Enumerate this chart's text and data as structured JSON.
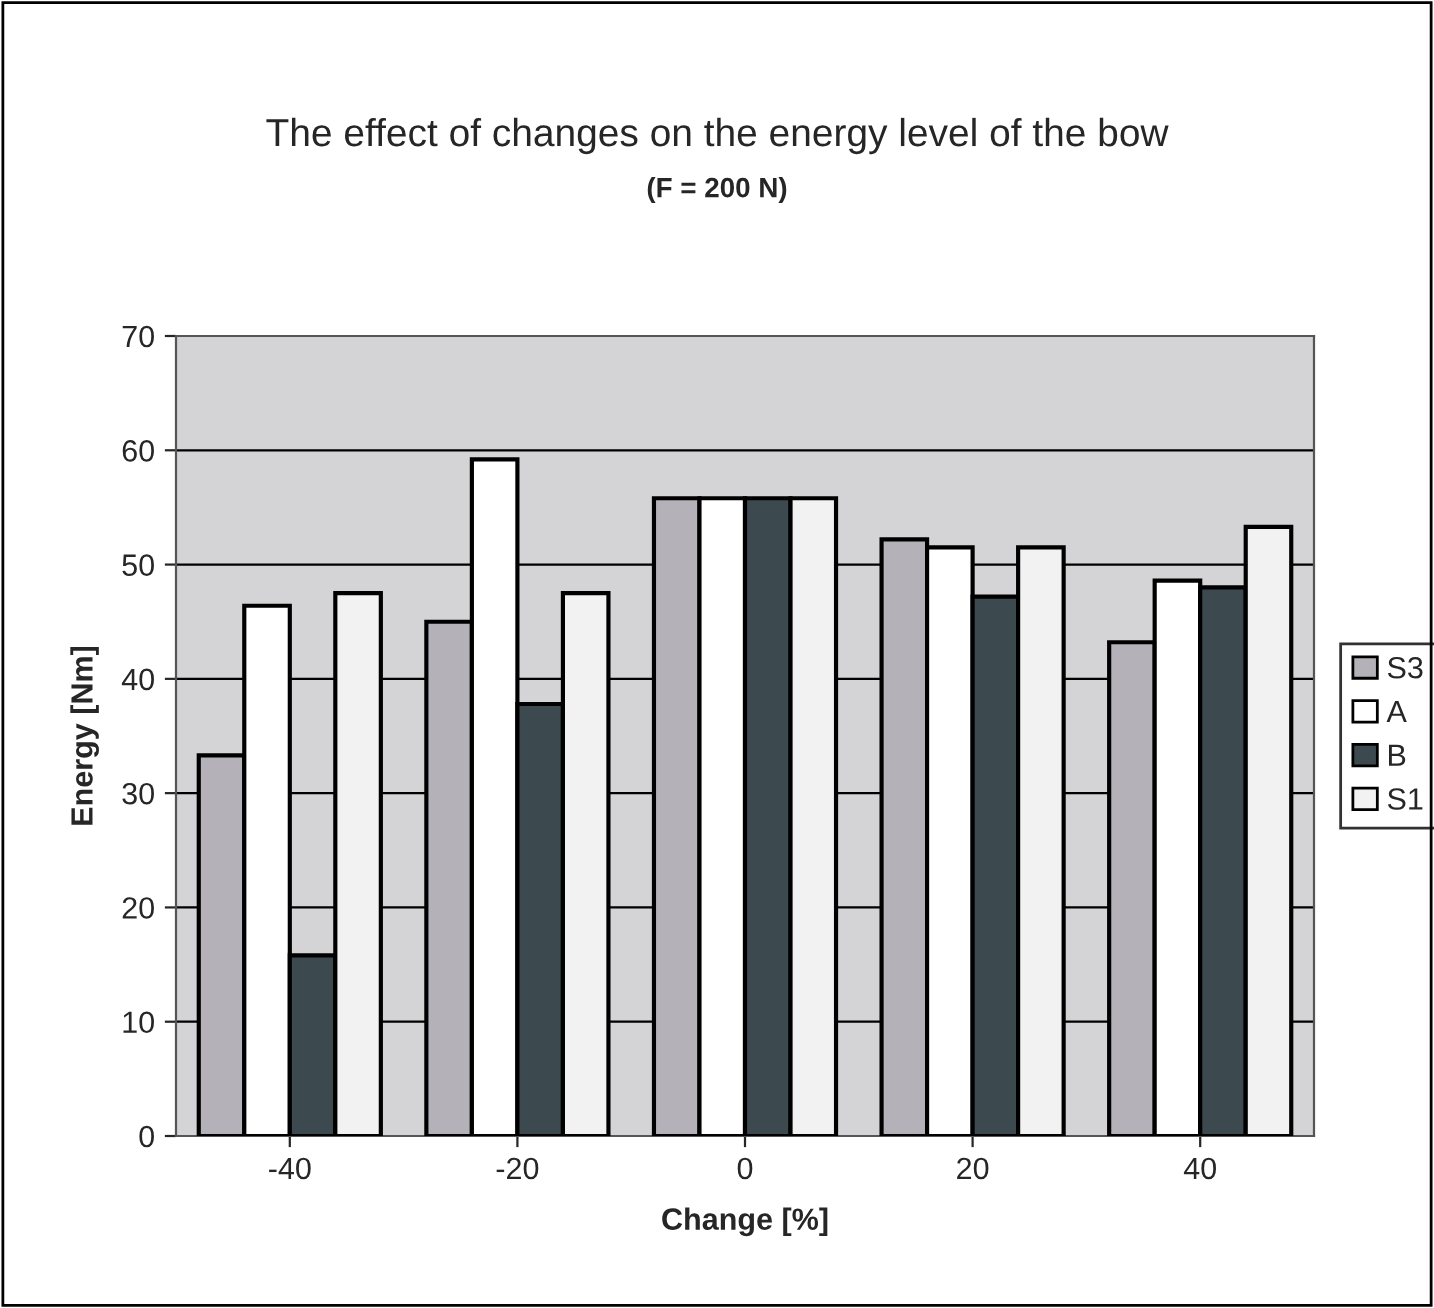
{
  "chart_data": {
    "type": "bar",
    "title": "The effect of changes on the energy level of the bow",
    "subtitle": "(F = 200 N)",
    "xlabel": "Change [%]",
    "ylabel": "Energy [Nm]",
    "categories": [
      "-40",
      "-20",
      "0",
      "20",
      "40"
    ],
    "series": [
      {
        "name": "S3",
        "color": "#b4b2b8",
        "values": [
          33.3,
          45.0,
          55.8,
          52.2,
          43.2
        ]
      },
      {
        "name": "A",
        "color": "#ffffff",
        "values": [
          46.4,
          59.2,
          55.8,
          51.5,
          48.6
        ]
      },
      {
        "name": "B",
        "color": "#3c4a50",
        "values": [
          15.8,
          37.8,
          55.8,
          47.2,
          48.0
        ]
      },
      {
        "name": "S1",
        "color": "#f2f2f2",
        "values": [
          47.5,
          47.5,
          55.8,
          51.5,
          53.3
        ]
      }
    ],
    "ylim": [
      0,
      70
    ],
    "yticks": [
      0,
      10,
      20,
      30,
      40,
      50,
      60,
      70
    ],
    "grid": "y",
    "legend": "right"
  }
}
